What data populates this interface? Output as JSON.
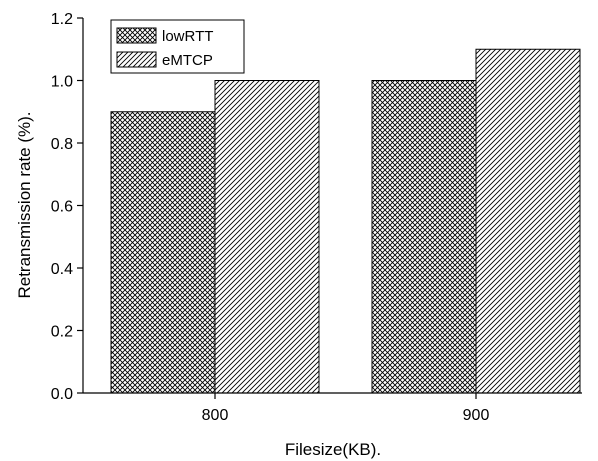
{
  "chart_data": {
    "type": "bar",
    "title": "",
    "xlabel": "Filesize(KB).",
    "ylabel": "Retransmission rate (%).",
    "categories": [
      "800",
      "900"
    ],
    "series": [
      {
        "name": "lowRTT",
        "values": [
          0.9,
          1.0
        ],
        "pattern": "crosshatch"
      },
      {
        "name": "eMTCP",
        "values": [
          1.0,
          1.1
        ],
        "pattern": "diagonal"
      }
    ],
    "ylim": [
      0.0,
      1.2
    ],
    "yticks": [
      "0.0",
      "0.2",
      "0.4",
      "0.6",
      "0.8",
      "1.0",
      "1.2"
    ],
    "grid": false,
    "legend_position": "top-left",
    "colors": {
      "axis": "#000000",
      "bar_fill": "#ffffff",
      "hatch": "#000000"
    }
  }
}
